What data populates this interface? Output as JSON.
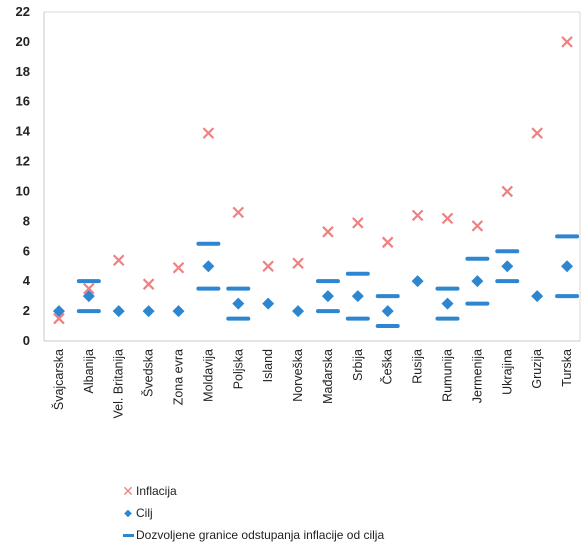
{
  "chart_data": {
    "type": "scatter",
    "title": "",
    "xlabel": "",
    "ylabel": "",
    "ylim": [
      0,
      22
    ],
    "yticks": [
      0,
      2,
      4,
      6,
      8,
      10,
      12,
      14,
      16,
      18,
      20,
      22
    ],
    "grid": false,
    "legend_position": "bottom-left",
    "categories": [
      "Švajcarska",
      "Albanija",
      "Vel. Britanija",
      "Švedska",
      "Zona evra",
      "Moldavija",
      "Poljska",
      "Island",
      "Norveška",
      "Mađarska",
      "Srbija",
      "Češka",
      "Rusija",
      "Rumunija",
      "Jermenija",
      "Ukrajina",
      "Gruzija",
      "Turska"
    ],
    "series": [
      {
        "name": "Inflacija",
        "marker": "x",
        "color": "#f08080",
        "values": [
          1.5,
          3.5,
          5.4,
          3.8,
          4.9,
          13.9,
          8.6,
          5.0,
          5.2,
          7.3,
          7.9,
          6.6,
          8.4,
          8.2,
          7.7,
          10.0,
          13.9,
          20.0
        ]
      },
      {
        "name": "Cilj",
        "marker": "diamond",
        "color": "#2e86d0",
        "values": [
          2.0,
          3.0,
          2.0,
          2.0,
          2.0,
          5.0,
          2.5,
          2.5,
          2.0,
          3.0,
          3.0,
          2.0,
          4.0,
          2.5,
          4.0,
          5.0,
          3.0,
          5.0
        ]
      },
      {
        "name": "Dozvoljene granice odstupanja inflacije od cilja",
        "marker": "dash",
        "color": "#2e86d0",
        "lower": [
          null,
          2.0,
          null,
          null,
          null,
          3.5,
          1.5,
          null,
          null,
          2.0,
          1.5,
          1.0,
          null,
          1.5,
          2.5,
          4.0,
          null,
          3.0
        ],
        "upper": [
          null,
          4.0,
          null,
          null,
          null,
          6.5,
          3.5,
          null,
          null,
          4.0,
          4.5,
          3.0,
          null,
          3.5,
          5.5,
          6.0,
          null,
          7.0
        ]
      }
    ]
  },
  "legend": {
    "inflation_label": "Inflacija",
    "target_label": "Cilj",
    "band_label": "Dozvoljene granice odstupanja inflacije od cilja"
  }
}
